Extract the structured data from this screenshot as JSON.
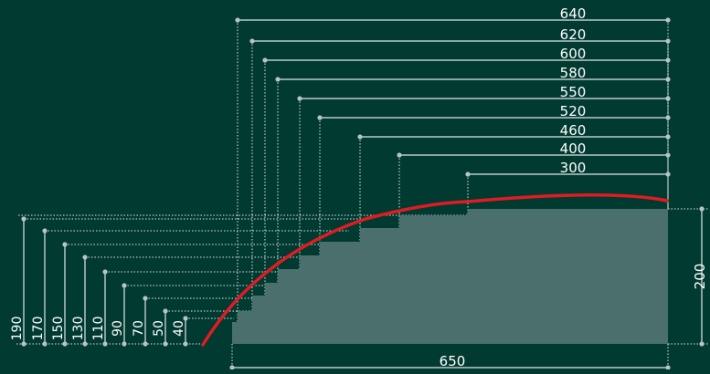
{
  "colors": {
    "background": "#013a30",
    "fill": "#4a6f6c",
    "dim_line": "#dfe8e6",
    "dot": "#b8c4c1",
    "curve": "#e01b23",
    "text": "#ffffff"
  },
  "widths": [
    "640",
    "620",
    "600",
    "580",
    "550",
    "520",
    "460",
    "400",
    "300"
  ],
  "heights": [
    "190",
    "170",
    "150",
    "130",
    "110",
    "90",
    "70",
    "50",
    "40"
  ],
  "total_width": "650",
  "total_height": "200"
}
